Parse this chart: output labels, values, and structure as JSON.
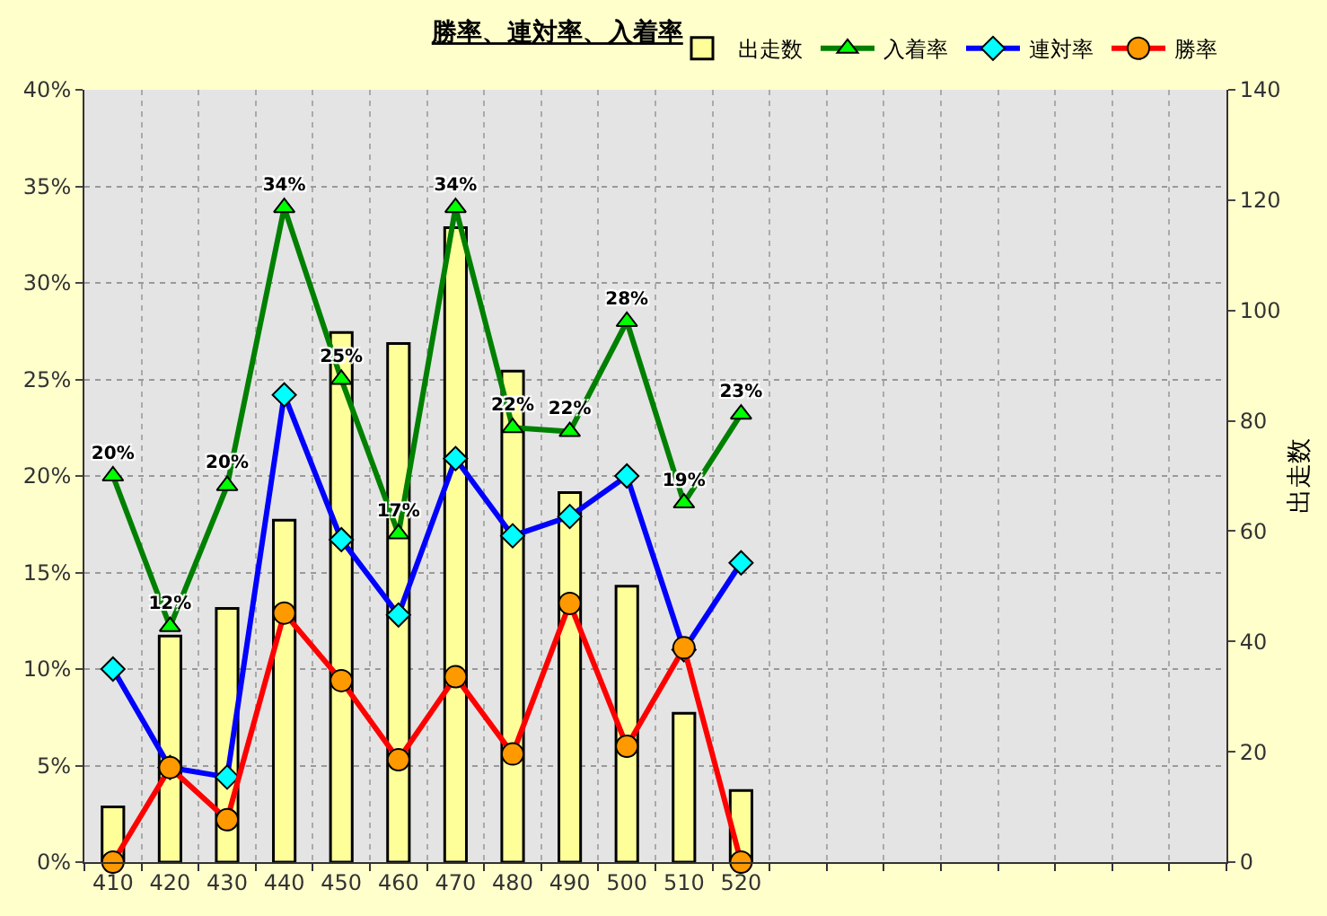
{
  "chart_data": {
    "type": "bar",
    "title": "勝率、連対率、入着率",
    "y2label": "出走数",
    "categories": [
      "410",
      "420",
      "430",
      "440",
      "450",
      "460",
      "470",
      "480",
      "490",
      "500",
      "510",
      "520",
      null,
      null,
      null,
      null,
      null,
      null,
      null,
      null
    ],
    "series": [
      {
        "name": "出走数",
        "axis": "y2",
        "color": "#ffff99",
        "values": [
          10,
          41,
          46,
          62,
          96,
          94,
          115,
          89,
          67,
          50,
          27,
          13,
          null,
          null,
          null,
          null,
          null,
          null,
          null,
          null
        ]
      },
      {
        "name": "入着率",
        "type": "line",
        "color": "#008000",
        "marker": "triangle",
        "values": [
          20.0,
          12.2,
          19.5,
          33.9,
          25.0,
          17.0,
          33.9,
          22.5,
          22.3,
          28.0,
          18.6,
          23.2,
          null,
          null,
          null,
          null,
          null,
          null,
          null,
          null
        ],
        "value_labels": [
          "20%",
          "12%",
          "20%",
          "34%",
          "25%",
          "17%",
          "34%",
          "22%",
          "22%",
          "28%",
          "19%",
          "23%",
          null,
          null,
          null,
          null,
          null,
          null,
          null,
          null
        ]
      },
      {
        "name": "連対率",
        "type": "line",
        "color": "#0000ff",
        "marker": "diamond",
        "values": [
          10.0,
          4.9,
          4.4,
          24.2,
          16.7,
          12.8,
          20.9,
          16.9,
          17.9,
          20.0,
          11.0,
          15.5,
          null,
          null,
          null,
          null,
          null,
          null,
          null,
          null
        ]
      },
      {
        "name": "勝率",
        "type": "line",
        "color": "#ff0000",
        "marker": "circle",
        "values": [
          0,
          4.9,
          2.2,
          12.9,
          9.4,
          5.3,
          9.6,
          5.6,
          13.4,
          6.0,
          11.1,
          0,
          null,
          null,
          null,
          null,
          null,
          null,
          null,
          null
        ]
      }
    ],
    "ylim": [
      0,
      40
    ],
    "yticks": [
      {
        "value": 0,
        "label": "0%"
      },
      {
        "value": 5,
        "label": "5%"
      },
      {
        "value": 10,
        "label": "10%"
      },
      {
        "value": 15,
        "label": "15%"
      },
      {
        "value": 20,
        "label": "20%"
      },
      {
        "value": 25,
        "label": "25%"
      },
      {
        "value": 30,
        "label": "30%"
      },
      {
        "value": 35,
        "label": "35%"
      },
      {
        "value": 40,
        "label": "40%"
      }
    ],
    "y2lim": [
      0,
      140
    ],
    "y2ticks": [
      0,
      20,
      40,
      60,
      80,
      100,
      120,
      140
    ],
    "grid": true,
    "legend": "top right"
  }
}
